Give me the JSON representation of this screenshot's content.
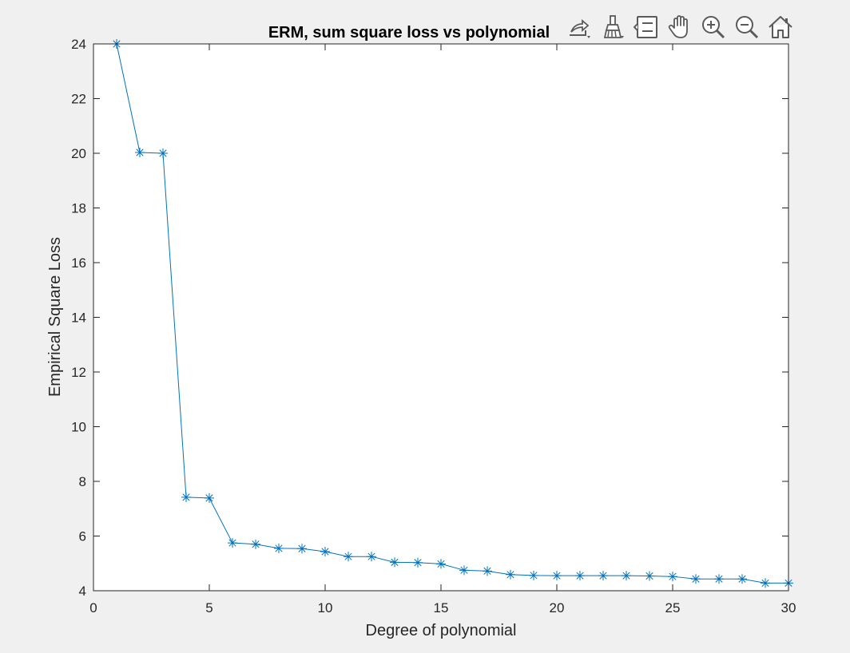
{
  "toolbar": {
    "buttons": [
      {
        "name": "export-button",
        "icon": "export-icon"
      },
      {
        "name": "brush-button",
        "icon": "brush-icon"
      },
      {
        "name": "data-tips-button",
        "icon": "data-tips-icon"
      },
      {
        "name": "pan-button",
        "icon": "hand-icon"
      },
      {
        "name": "zoom-in-button",
        "icon": "zoom-in-icon"
      },
      {
        "name": "zoom-out-button",
        "icon": "zoom-out-icon"
      },
      {
        "name": "restore-view-button",
        "icon": "home-icon"
      }
    ]
  },
  "colors": {
    "figure_bg": "#f0f0f0",
    "axes_bg": "#ffffff",
    "axis": "#262626",
    "series": "#0072bd"
  },
  "chart_data": {
    "type": "line",
    "title": "ERM, sum square loss vs polynomial",
    "xlabel": "Degree of polynomial",
    "ylabel": "Empirical Square Loss",
    "xlim": [
      0,
      30
    ],
    "ylim": [
      4,
      24
    ],
    "xticks": [
      0,
      5,
      10,
      15,
      20,
      25,
      30
    ],
    "yticks": [
      4,
      6,
      8,
      10,
      12,
      14,
      16,
      18,
      20,
      22,
      24
    ],
    "grid": false,
    "marker": "asterisk",
    "series": [
      {
        "x": [
          1,
          2,
          3,
          4,
          5,
          6,
          7,
          8,
          9,
          10,
          11,
          12,
          13,
          14,
          15,
          16,
          17,
          18,
          19,
          20,
          21,
          22,
          23,
          24,
          25,
          26,
          27,
          28,
          29,
          30
        ],
        "values": [
          24.0,
          20.03,
          20.0,
          7.42,
          7.39,
          5.75,
          5.7,
          5.55,
          5.54,
          5.43,
          5.25,
          5.25,
          5.04,
          5.03,
          4.98,
          4.75,
          4.72,
          4.59,
          4.56,
          4.55,
          4.55,
          4.55,
          4.55,
          4.54,
          4.52,
          4.43,
          4.43,
          4.43,
          4.28,
          4.28
        ]
      }
    ]
  }
}
